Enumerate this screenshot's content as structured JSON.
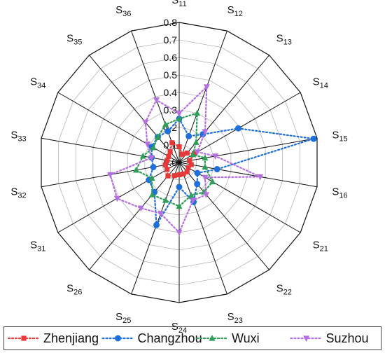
{
  "chart_data": {
    "type": "radar",
    "categories": [
      "S11",
      "S12",
      "S13",
      "S14",
      "S15",
      "S16",
      "S21",
      "S22",
      "S23",
      "S24",
      "S25",
      "S26",
      "S31",
      "S32",
      "S33",
      "S34",
      "S35",
      "S36"
    ],
    "ylim": [
      0,
      0.8
    ],
    "ticks": [
      "0.0",
      "0.1",
      "0.2",
      "0.3",
      "0.4",
      "0.5",
      "0.6",
      "0.7",
      "0.8"
    ],
    "grid": true,
    "legend_position": "bottom",
    "series": [
      {
        "name": "Zhenjiang",
        "color": "#e8393a",
        "line": "dotted",
        "marker": "square",
        "values": [
          0.09,
          0.05,
          0.07,
          0.1,
          0.06,
          0.07,
          0.06,
          0.07,
          0.07,
          0.07,
          0.08,
          0.1,
          0.08,
          0.08,
          0.07,
          0.07,
          0.08,
          0.12
        ]
      },
      {
        "name": "Changzhou",
        "color": "#1e6fd9",
        "line": "dotted",
        "marker": "circle",
        "values": [
          0.25,
          0.16,
          0.21,
          0.39,
          0.78,
          0.22,
          0.12,
          0.16,
          0.24,
          0.14,
          0.38,
          0.22,
          0.2,
          0.15,
          0.16,
          0.18,
          0.19,
          0.19
        ]
      },
      {
        "name": "Wuxi",
        "color": "#2e9e58",
        "line": "dotted",
        "marker": "triangle",
        "values": [
          0.25,
          0.3,
          0.15,
          0.09,
          0.15,
          0.15,
          0.22,
          0.22,
          0.2,
          0.25,
          0.23,
          0.24,
          0.18,
          0.25,
          0.21,
          0.17,
          0.19,
          0.23
        ]
      },
      {
        "name": "Suzhou",
        "color": "#b46fe0",
        "line": "dotted",
        "marker": "triangle-down",
        "values": [
          0.28,
          0.46,
          0.23,
          0.12,
          0.21,
          0.47,
          0.17,
          0.24,
          0.23,
          0.4,
          0.31,
          0.34,
          0.41,
          0.4,
          0.16,
          0.21,
          0.3,
          0.38
        ]
      }
    ]
  },
  "legend": {
    "items": [
      {
        "label": "Zhenjiang"
      },
      {
        "label": "Changzhou"
      },
      {
        "label": "Wuxi"
      },
      {
        "label": "Suzhou"
      }
    ]
  }
}
